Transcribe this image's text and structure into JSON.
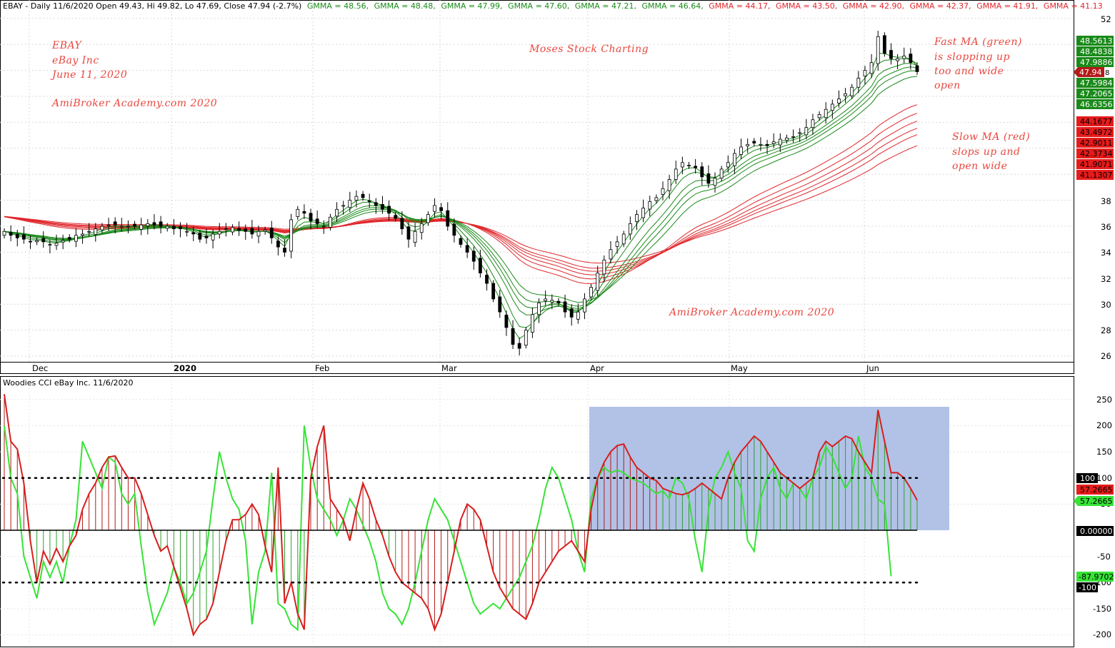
{
  "price_panel": {
    "header": {
      "prefix": "EBAY - Daily 11/6/2020 Open 49.43, Hi 49.82, Lo 47.69, Close 47.94 (-2.7%)",
      "gmma_fast": [
        "GMMA = 48.56,",
        "GMMA = 48.48,",
        "GMMA = 47.99,",
        "GMMA = 47.60,",
        "GMMA = 47.21,",
        "GMMA = 46.64,"
      ],
      "gmma_slow": [
        "GMMA = 44.17,",
        "GMMA = 43.50,",
        "GMMA = 42.90,",
        "GMMA = 42.37,",
        "GMMA = 41.91,",
        "GMMA = 41.13"
      ]
    },
    "annotations": {
      "title_lines": [
        "EBAY",
        "eBay Inc",
        "June 11, 2020"
      ],
      "credit_left": "AmiBroker Academy.com  2020",
      "center_credit": "Moses Stock Charting",
      "credit_bottom": "AmiBroker Academy.com  2020",
      "fast_note": [
        "Fast MA (green)",
        "is slopping up",
        "too and wide",
        "open"
      ],
      "slow_note": [
        "Slow MA (red)",
        "slops up and",
        "open wide"
      ]
    },
    "y_ticks": [
      "52",
      "38",
      "36",
      "34",
      "32",
      "30",
      "28",
      "26"
    ],
    "fast_tags": [
      "48.5613",
      "48.4838",
      "47.9886",
      "47.5984",
      "47.2065",
      "46.6356"
    ],
    "close_tag": "47.94",
    "slow_tags": [
      "44.1677",
      "43.4972",
      "42.9011",
      "42.3734",
      "41.9071",
      "41.1307"
    ],
    "months": [
      "Dec",
      "2020",
      "Feb",
      "Mar",
      "Apr",
      "May",
      "Jun"
    ]
  },
  "cci_panel": {
    "header": "Woodies CCI  eBay Inc. 11/6/2020",
    "y_ticks": [
      "250",
      "200",
      "150",
      "100",
      "50",
      "-50",
      "-100",
      "-150",
      "-200"
    ],
    "tags": {
      "plus100": "100",
      "red_value": "57.2665",
      "green_value": "57.2665",
      "zero": "0.00000",
      "green_low": "-87.9702",
      "minus100": "-100"
    }
  },
  "colors": {
    "fast": "#1a8a1a",
    "slow": "#e0262b",
    "cci_red": "#d81e1e",
    "cci_green": "#37e337",
    "highlight": "#a9bbe3",
    "note": "#e8473f"
  },
  "chart_data": [
    {
      "type": "candlestick",
      "title": "EBAY - Daily 11/6/2020",
      "ylim": [
        25,
        53
      ],
      "x_labels": [
        "Dec",
        "2020",
        "Feb",
        "Mar",
        "Apr",
        "May",
        "Jun"
      ],
      "last_bar": {
        "open": 49.43,
        "high": 49.82,
        "low": 47.69,
        "close": 47.94
      },
      "gmma_fast_last": [
        48.56,
        48.48,
        47.99,
        47.6,
        47.21,
        46.64
      ],
      "gmma_slow_last": [
        44.17,
        43.5,
        42.9,
        42.37,
        41.91,
        41.13
      ],
      "close_series": [
        35.6,
        35.3,
        35.1,
        35.0,
        34.8,
        34.9,
        34.8,
        34.6,
        34.7,
        34.9,
        35.0,
        35.3,
        35.4,
        35.6,
        35.8,
        36.0,
        36.1,
        36.1,
        36.0,
        36.0,
        36.0,
        36.1,
        36.2,
        36.1,
        36.0,
        36.0,
        35.8,
        35.8,
        35.6,
        35.4,
        35.0,
        35.1,
        35.4,
        35.6,
        35.8,
        35.9,
        35.7,
        35.6,
        35.4,
        35.6,
        35.7,
        35.1,
        34.4,
        34.0,
        36.5,
        37.3,
        37.0,
        36.4,
        36.2,
        36.0,
        36.7,
        37.3,
        37.6,
        38.0,
        38.3,
        38.2,
        37.9,
        37.6,
        37.3,
        37.0,
        36.6,
        35.8,
        35.0,
        35.6,
        36.2,
        36.9,
        37.6,
        37.2,
        36.0,
        35.3,
        34.6,
        34.0,
        33.3,
        32.4,
        31.6,
        30.4,
        29.4,
        28.2,
        26.9,
        26.6,
        28.0,
        29.2,
        30.1,
        30.4,
        30.3,
        30.1,
        29.4,
        29.0,
        29.4,
        30.4,
        31.3,
        32.4,
        33.4,
        34.2,
        34.8,
        35.4,
        36.2,
        36.9,
        37.4,
        37.9,
        38.2,
        38.9,
        39.6,
        40.4,
        40.9,
        40.7,
        40.5,
        39.8,
        39.3,
        39.7,
        40.4,
        40.9,
        41.6,
        42.1,
        42.3,
        42.4,
        42.3,
        42.2,
        42.5,
        42.7,
        42.8,
        42.9,
        43.2,
        43.6,
        44.2,
        44.6,
        45.0,
        45.4,
        45.8,
        46.2,
        46.7,
        47.4,
        48.0,
        48.6,
        50.6,
        49.3,
        48.9,
        48.9,
        49.1,
        48.6,
        47.9
      ],
      "fast_ma_ends": [
        48.56,
        48.48,
        47.99,
        47.6,
        47.21,
        46.64
      ],
      "slow_ma_ends": [
        44.17,
        43.5,
        42.9,
        42.37,
        41.91,
        41.13
      ]
    },
    {
      "type": "line",
      "title": "Woodies CCI  eBay Inc. 11/6/2020",
      "ylim": [
        -215,
        280
      ],
      "reference_lines": [
        100,
        0,
        -100
      ],
      "highlight_range_y": [
        0,
        235
      ],
      "series": [
        {
          "values": [
            260,
            170,
            155,
            90,
            -20,
            -100,
            -40,
            -65,
            -35,
            -60,
            -30,
            -10,
            40,
            70,
            90,
            120,
            140,
            142,
            120,
            100,
            100,
            70,
            30,
            -10,
            -40,
            -30,
            -70,
            -110,
            -150,
            -200,
            -180,
            -170,
            -140,
            -80,
            -20,
            20,
            20,
            30,
            50,
            30,
            -30,
            -80,
            120,
            -140,
            -100,
            -160,
            -190,
            100,
            160,
            200,
            60,
            40,
            20,
            -20,
            40,
            90,
            60,
            20,
            -10,
            -50,
            -80,
            -100,
            -110,
            -120,
            -130,
            -150,
            -190,
            -160,
            -100,
            -40,
            20,
            50,
            40,
            20,
            -30,
            -80,
            -110,
            -130,
            -150,
            -160,
            -170,
            -140,
            -100,
            -80,
            -60,
            -40,
            -30,
            -20,
            -40,
            -60,
            40,
            100,
            130,
            150,
            162,
            165,
            140,
            120,
            110,
            100,
            95,
            80,
            75,
            70,
            68,
            72,
            80,
            90,
            80,
            70,
            60,
            100,
            130,
            150,
            165,
            180,
            170,
            150,
            130,
            110,
            100,
            90,
            80,
            90,
            100,
            150,
            170,
            160,
            170,
            180,
            175,
            150,
            130,
            110,
            230,
            170,
            110,
            110,
            100,
            80,
            57.27
          ]
        },
        {
          "values": [
            200,
            100,
            70,
            -50,
            -90,
            -130,
            -60,
            -90,
            -60,
            -100,
            -30,
            20,
            170,
            140,
            110,
            80,
            140,
            130,
            70,
            50,
            70,
            -30,
            -120,
            -180,
            -150,
            -120,
            -70,
            -100,
            -140,
            -120,
            -80,
            -40,
            60,
            150,
            100,
            60,
            40,
            -20,
            -180,
            -80,
            -40,
            110,
            -140,
            -150,
            -180,
            -190,
            200,
            120,
            60,
            40,
            20,
            -10,
            20,
            60,
            40,
            10,
            -20,
            -60,
            -120,
            -150,
            -160,
            -180,
            -150,
            -100,
            -40,
            20,
            60,
            40,
            20,
            -20,
            -60,
            -100,
            -140,
            -160,
            -150,
            -140,
            -150,
            -130,
            -110,
            -90,
            -60,
            -30,
            20,
            80,
            120,
            100,
            60,
            20,
            -40,
            -80,
            60,
            100,
            120,
            110,
            115,
            110,
            100,
            95,
            90,
            80,
            70,
            75,
            60,
            100,
            90,
            60,
            -20,
            -80,
            40,
            100,
            120,
            150,
            110,
            80,
            -20,
            -40,
            60,
            100,
            120,
            80,
            60,
            90,
            80,
            60,
            100,
            120,
            160,
            140,
            110,
            80,
            100,
            180,
            120,
            100,
            60,
            50,
            -87.97
          ]
        }
      ]
    }
  ]
}
